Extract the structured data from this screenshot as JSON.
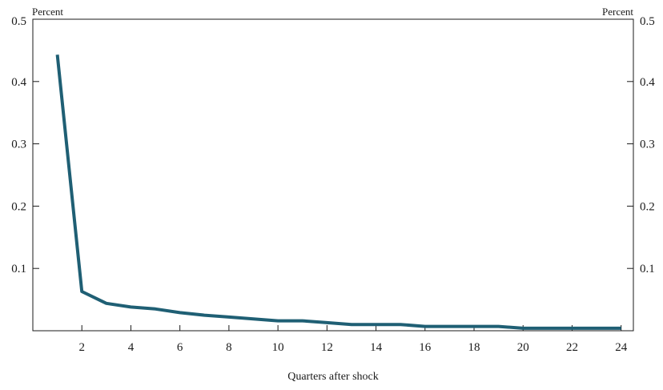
{
  "chart_data": {
    "type": "line",
    "title": "",
    "xlabel": "Quarters after shock",
    "ylabel_left": "Percent",
    "ylabel_right": "Percent",
    "xlim": [
      0,
      24.5
    ],
    "ylim": [
      0,
      0.5
    ],
    "x_ticks": [
      2,
      4,
      6,
      8,
      10,
      12,
      14,
      16,
      18,
      20,
      22,
      24
    ],
    "x_tick_labels": [
      "2",
      "4",
      "6",
      "8",
      "10",
      "12",
      "14",
      "16",
      "18",
      "20",
      "22",
      "24"
    ],
    "y_ticks": [
      0.1,
      0.2,
      0.3,
      0.4,
      0.5
    ],
    "y_tick_labels": [
      "0.1",
      "0.2",
      "0.3",
      "0.4",
      "0.5"
    ],
    "grid": false,
    "series": [
      {
        "color": "#1f5f74",
        "x": [
          1,
          2,
          3,
          4,
          5,
          6,
          7,
          8,
          9,
          10,
          11,
          12,
          13,
          14,
          15,
          16,
          17,
          18,
          19,
          20,
          21,
          22,
          23,
          24
        ],
        "values": [
          0.443,
          0.063,
          0.044,
          0.038,
          0.035,
          0.029,
          0.025,
          0.022,
          0.019,
          0.016,
          0.016,
          0.013,
          0.01,
          0.01,
          0.01,
          0.007,
          0.007,
          0.007,
          0.007,
          0.004,
          0.004,
          0.004,
          0.004,
          0.004
        ]
      }
    ]
  }
}
